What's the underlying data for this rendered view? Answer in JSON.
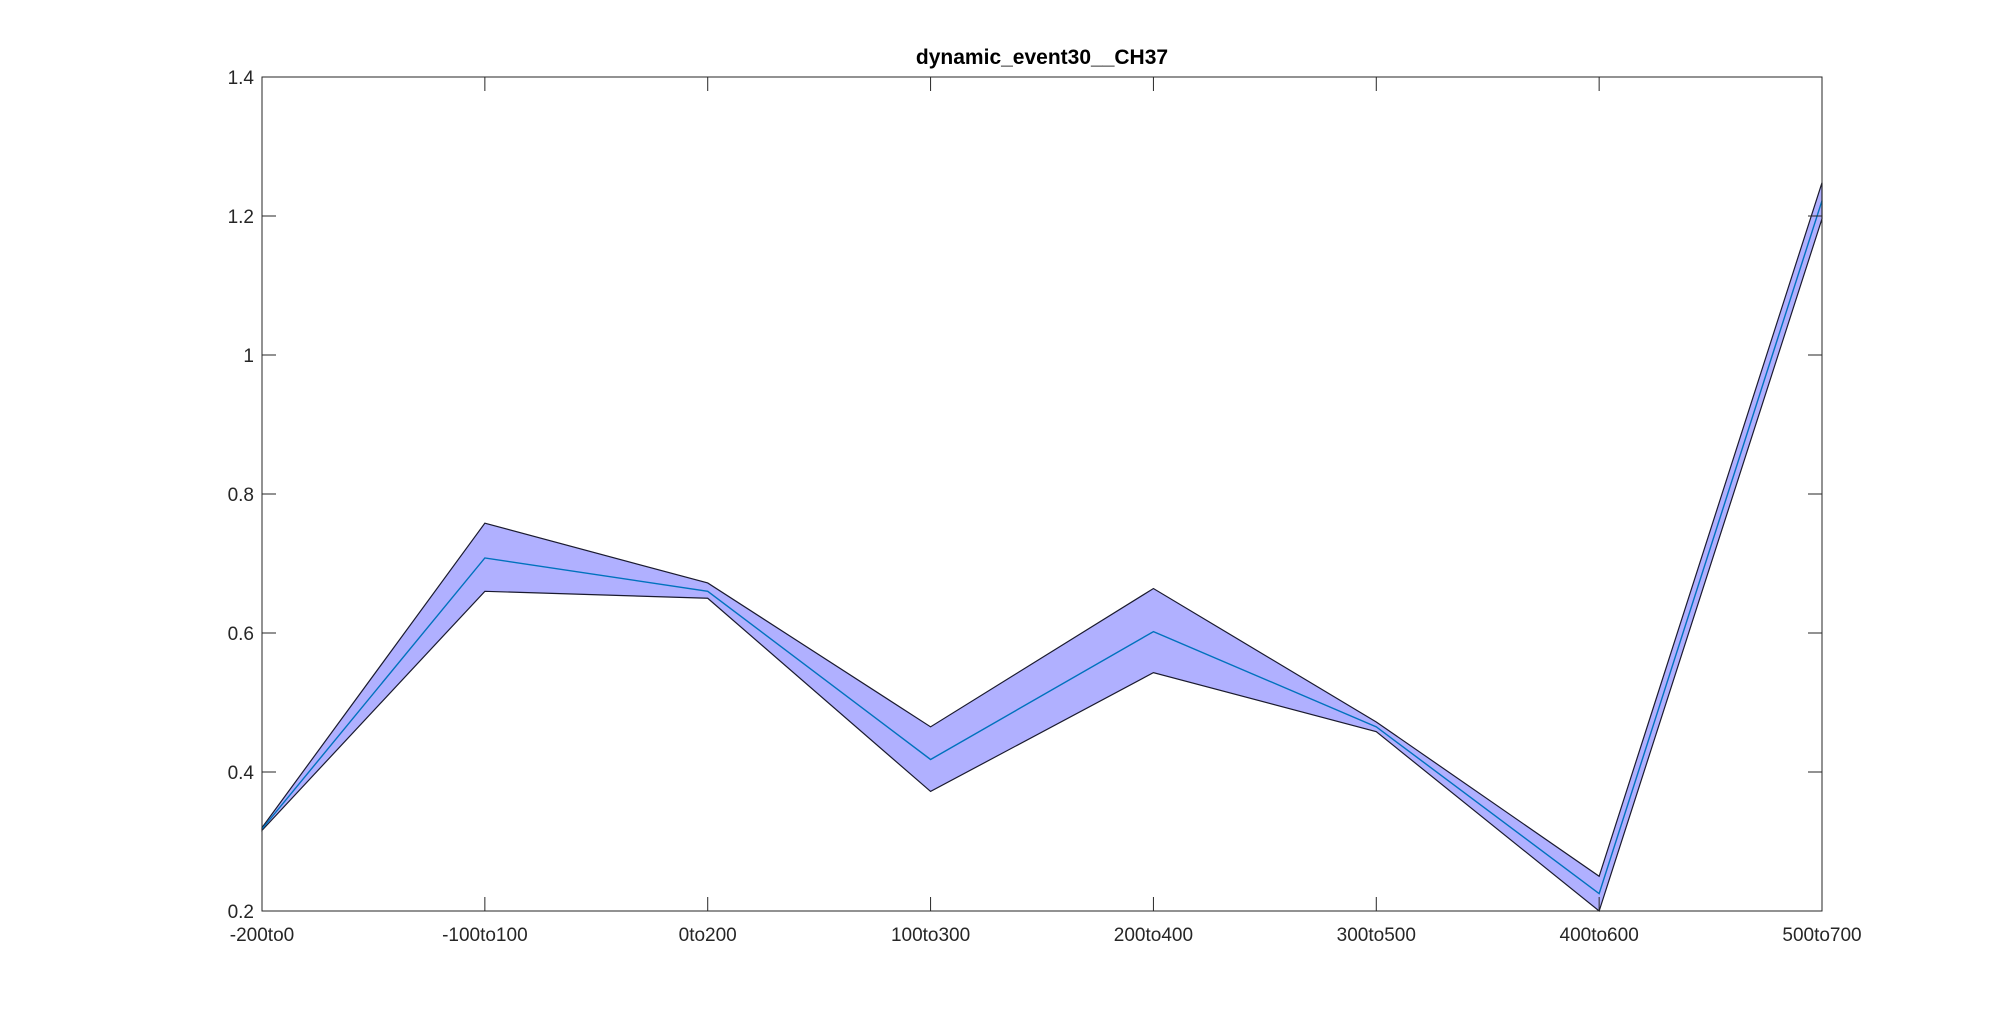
{
  "chart_data": {
    "type": "area",
    "title": "dynamic_event30__CH37",
    "xlabel": "",
    "ylabel": "",
    "categories": [
      "-200to0",
      "-100to100",
      "0to200",
      "100to300",
      "200to400",
      "300to500",
      "400to600",
      "500to700"
    ],
    "series": [
      {
        "values": [
          0.318,
          0.708,
          0.66,
          0.418,
          0.602,
          0.465,
          0.225,
          1.222
        ]
      }
    ],
    "band": {
      "upper": [
        0.32,
        0.758,
        0.672,
        0.465,
        0.664,
        0.472,
        0.25,
        1.248
      ],
      "lower": [
        0.316,
        0.66,
        0.65,
        0.372,
        0.543,
        0.458,
        0.2,
        1.196
      ]
    },
    "ylim": [
      0.2,
      1.4
    ],
    "yticks": [
      "0.2",
      "0.4",
      "0.6",
      "0.8",
      "1",
      "1.2",
      "1.4"
    ],
    "grid": false,
    "colors": {
      "band_fill": "#b0b0ff",
      "band_edge": "#1a1a2e",
      "line": "#0072bd",
      "axes": "#262626"
    }
  }
}
